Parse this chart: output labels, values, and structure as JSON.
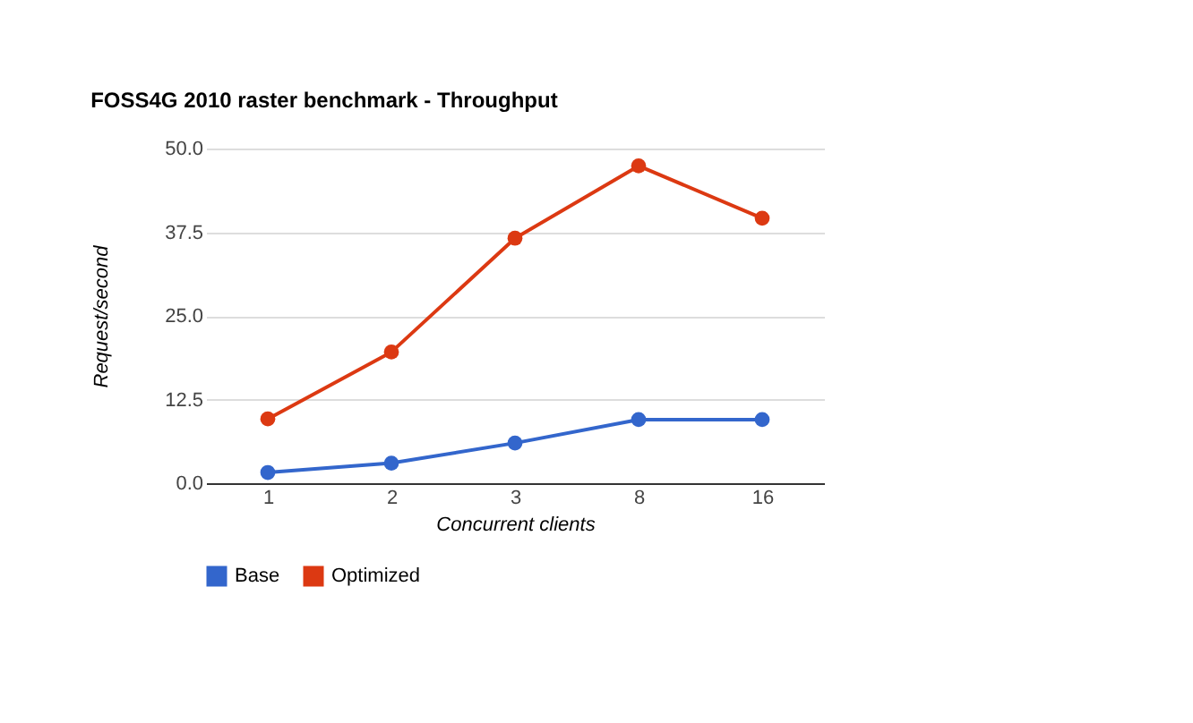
{
  "chart_data": {
    "type": "line",
    "title": "FOSS4G 2010 raster benchmark - Throughput",
    "xlabel": "Concurrent clients",
    "ylabel": "Request/second",
    "categories": [
      "1",
      "2",
      "3",
      "8",
      "16"
    ],
    "series": [
      {
        "name": "Base",
        "color": "#3366cc",
        "values": [
          1.6,
          3.0,
          6.0,
          9.5,
          9.5
        ]
      },
      {
        "name": "Optimized",
        "color": "#dc3912",
        "values": [
          9.6,
          19.6,
          36.6,
          47.4,
          39.6
        ]
      }
    ],
    "ylim": [
      0,
      50
    ],
    "yticks": [
      {
        "value": 0,
        "label": "0.0"
      },
      {
        "value": 12.5,
        "label": "12.5"
      },
      {
        "value": 25,
        "label": "25.0"
      },
      {
        "value": 37.5,
        "label": "37.5"
      },
      {
        "value": 50,
        "label": "50.0"
      }
    ],
    "grid": "y",
    "legend": "bottom",
    "marker": "circle",
    "line_style": "solid"
  }
}
